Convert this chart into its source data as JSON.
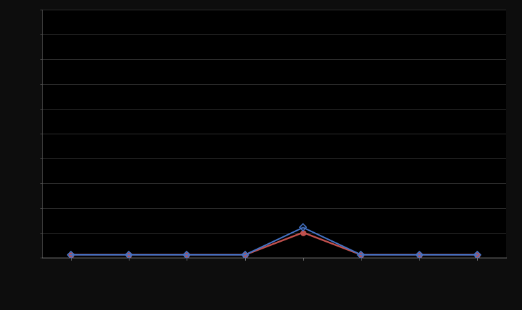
{
  "x": [
    1,
    2,
    3,
    4,
    5,
    6,
    7,
    8
  ],
  "series1_y": [
    1,
    1,
    1,
    1,
    12,
    1,
    1,
    1
  ],
  "series2_y": [
    1,
    1,
    1,
    1,
    10,
    1,
    1,
    1
  ],
  "series1_label": "",
  "series2_label": "",
  "series1_color": "#4472c4",
  "series2_color": "#c0504d",
  "background_color": "#0d0d0d",
  "plot_bg_color": "#000000",
  "grid_color": "#3a3a3a",
  "ylim": [
    0,
    100
  ],
  "xlim": [
    0.5,
    8.5
  ],
  "figsize": [
    7.58,
    4.5
  ],
  "dpi": 100
}
